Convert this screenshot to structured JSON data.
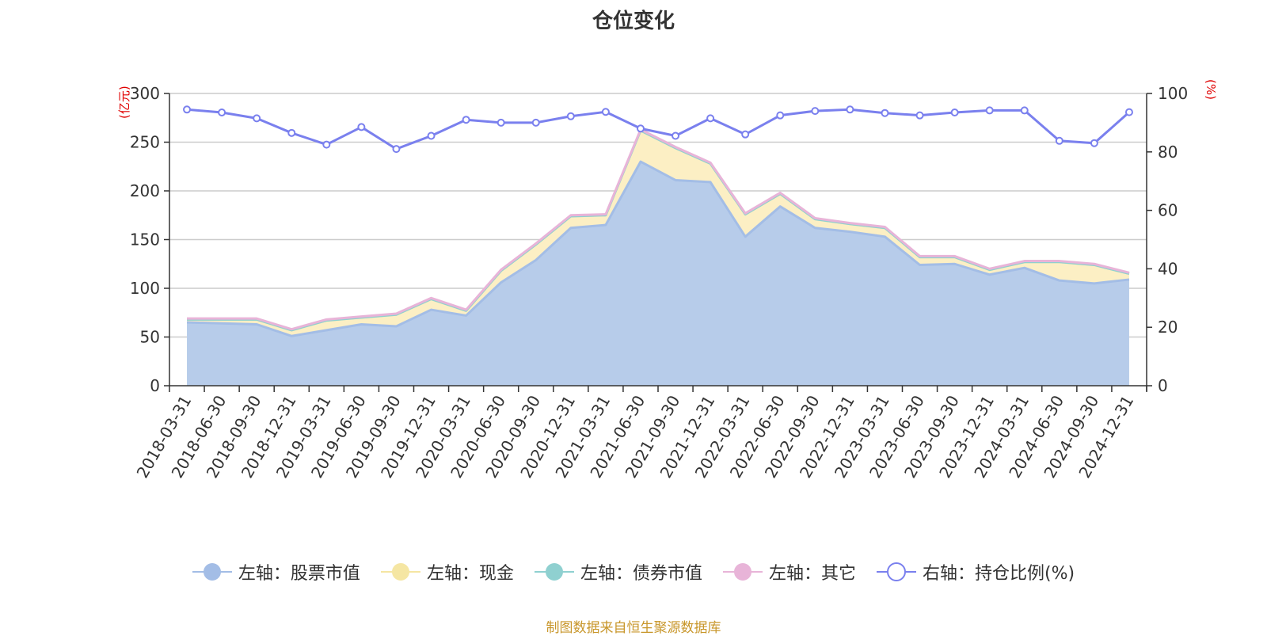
{
  "chart_data": {
    "type": "area",
    "title": "仓位变化",
    "left_unit": "(亿元)",
    "right_unit": "(%)",
    "categories": [
      "2018-03-31",
      "2018-06-30",
      "2018-09-30",
      "2018-12-31",
      "2019-03-31",
      "2019-06-30",
      "2019-09-30",
      "2019-12-31",
      "2020-03-31",
      "2020-06-30",
      "2020-09-30",
      "2020-12-31",
      "2021-03-31",
      "2021-06-30",
      "2021-09-30",
      "2021-12-31",
      "2022-03-31",
      "2022-06-30",
      "2022-09-30",
      "2022-12-31",
      "2023-03-31",
      "2023-06-30",
      "2023-09-30",
      "2023-12-31",
      "2024-03-31",
      "2024-06-30",
      "2024-09-30",
      "2024-12-31"
    ],
    "ylim_left": [
      0,
      300
    ],
    "yticks_left": [
      0,
      50,
      100,
      150,
      200,
      250,
      300
    ],
    "ylim_right": [
      0,
      100
    ],
    "yticks_right": [
      0,
      20,
      40,
      60,
      80,
      100
    ],
    "grid": true,
    "legend_position": "bottom",
    "series": [
      {
        "name": "左轴：股票市值",
        "axis": "left",
        "stack": true,
        "color": "#a3bde6",
        "fill": "#b7ccea",
        "values": [
          65,
          64,
          63,
          51,
          57,
          63,
          61,
          78,
          72,
          106,
          129,
          162,
          165,
          230,
          211,
          209,
          153,
          184,
          162,
          158,
          153,
          124,
          125,
          114,
          121,
          108,
          105,
          109
        ]
      },
      {
        "name": "左轴：现金",
        "axis": "left",
        "stack": true,
        "color": "#f5e6a3",
        "fill": "#fcefc4",
        "values": [
          3,
          4,
          5,
          6,
          10,
          7,
          12,
          11,
          5,
          12,
          16,
          12,
          10,
          32,
          33,
          19,
          23,
          13,
          9,
          8,
          9,
          8,
          7,
          5,
          6,
          19,
          19,
          6
        ]
      },
      {
        "name": "左轴：债券市值",
        "axis": "left",
        "stack": true,
        "color": "#8fd0d0",
        "fill": "#b8e2e2",
        "values": [
          0,
          0,
          0,
          0,
          0,
          0,
          0,
          0,
          0,
          0,
          0,
          0,
          0,
          0,
          0,
          0,
          0,
          0,
          0,
          0,
          0,
          0,
          0,
          0,
          0,
          0,
          0,
          0
        ]
      },
      {
        "name": "左轴：其它",
        "axis": "left",
        "stack": true,
        "color": "#e8b4d8",
        "fill": "#f0cde6",
        "values": [
          1,
          1,
          1,
          1,
          1,
          1,
          1,
          1,
          1,
          1,
          1,
          1,
          1,
          1,
          1,
          1,
          1,
          1,
          1,
          1,
          1,
          1,
          1,
          1,
          1,
          1,
          1,
          1
        ]
      },
      {
        "name": "右轴：持仓比例(%)",
        "axis": "right",
        "type": "line",
        "color": "#7a80ee",
        "values": [
          94.5,
          93.5,
          91.5,
          86.5,
          82.5,
          88.5,
          81,
          85.5,
          91,
          90,
          90,
          92.2,
          93.7,
          88,
          85.5,
          91.5,
          86,
          92.5,
          94,
          94.5,
          93.3,
          92.5,
          93.5,
          94.2,
          94.2,
          83.8,
          83,
          93.6
        ]
      }
    ]
  },
  "footer": "制图数据来自恒生聚源数据库"
}
